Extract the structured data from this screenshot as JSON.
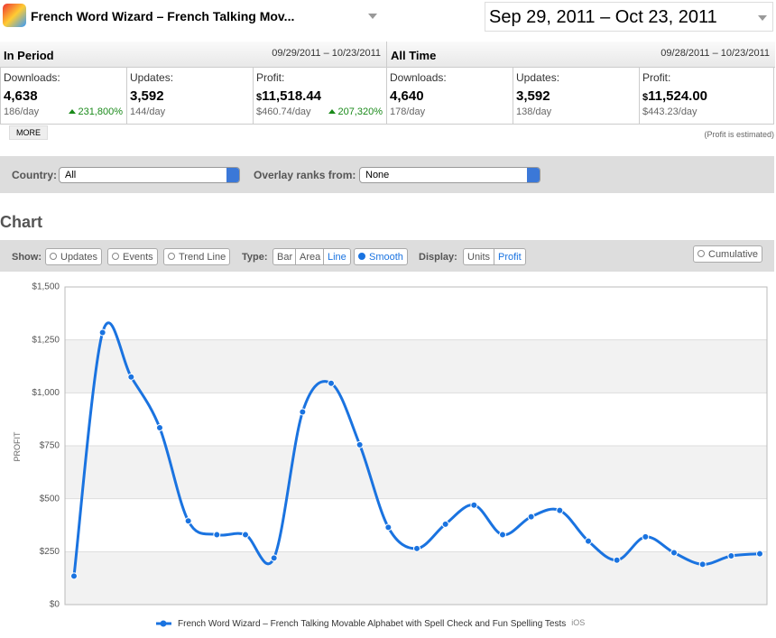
{
  "header": {
    "app_title": "French Word Wizard – French Talking Mov...",
    "date_range": "Sep 29, 2011 – Oct 23, 2011"
  },
  "summary": {
    "in_period": {
      "title": "In Period",
      "date_range": "09/29/2011 – 10/23/2011",
      "downloads": {
        "label": "Downloads:",
        "value": "4,638",
        "per_day": "186/day",
        "change": "231,800%"
      },
      "updates": {
        "label": "Updates:",
        "value": "3,592",
        "per_day": "144/day"
      },
      "profit": {
        "label": "Profit:",
        "currency": "$",
        "value": "11,518.44",
        "per_day": "$460.74/day",
        "change": "207,320%"
      }
    },
    "all_time": {
      "title": "All Time",
      "date_range": "09/28/2011 – 10/23/2011",
      "downloads": {
        "label": "Downloads:",
        "value": "4,640",
        "per_day": "178/day"
      },
      "updates": {
        "label": "Updates:",
        "value": "3,592",
        "per_day": "138/day"
      },
      "profit": {
        "label": "Profit:",
        "currency": "$",
        "value": "11,524.00",
        "per_day": "$443.23/day"
      }
    },
    "more": "MORE",
    "note": "(Profit is estimated)"
  },
  "filters": {
    "country_label": "Country:",
    "country": "All",
    "overlay_label": "Overlay ranks from:",
    "overlay": "None"
  },
  "chart_heading": "Chart",
  "toolbar": {
    "show_label": "Show:",
    "show_options": [
      "Updates",
      "Events",
      "Trend Line"
    ],
    "type_label": "Type:",
    "type_options": [
      "Bar",
      "Area",
      "Line"
    ],
    "smooth": "Smooth",
    "display_label": "Display:",
    "display_options": [
      "Units",
      "Profit"
    ],
    "cumulative": "Cumulative"
  },
  "chart_data": {
    "type": "line",
    "smooth": true,
    "ylabel": "PROFIT",
    "ylim": [
      0,
      1500
    ],
    "yticks": [
      {
        "value": 0,
        "label": "$0"
      },
      {
        "value": 250,
        "label": "$250"
      },
      {
        "value": 500,
        "label": "$500"
      },
      {
        "value": 750,
        "label": "$750"
      },
      {
        "value": 1000,
        "label": "$1,000"
      },
      {
        "value": 1250,
        "label": "$1,250"
      },
      {
        "value": 1500,
        "label": "$1,500"
      }
    ],
    "series": [
      {
        "name": "French Word Wizard – French Talking Movable Alphabet with Spell Check and Fun Spelling Tests",
        "tag": "iOS",
        "color": "#1a73e0",
        "values": [
          135,
          1285,
          1075,
          835,
          395,
          330,
          330,
          220,
          910,
          1045,
          755,
          365,
          265,
          380,
          470,
          330,
          415,
          445,
          300,
          210,
          320,
          245,
          190,
          230,
          240
        ]
      }
    ]
  }
}
